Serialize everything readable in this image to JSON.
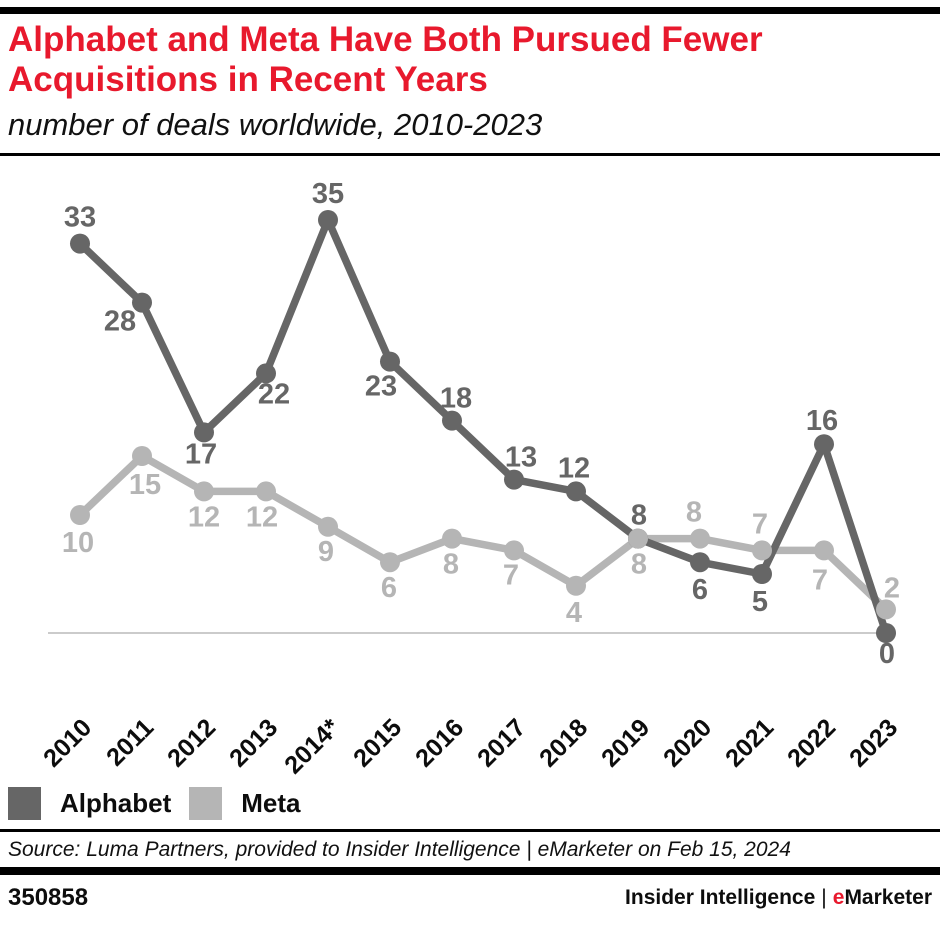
{
  "header": {
    "title_line1": "Alphabet and Meta Have Both Pursued Fewer",
    "title_line2": "Acquisitions in Recent Years",
    "subtitle": "number of deals worldwide, 2010-2023",
    "title_color": "#e8192d"
  },
  "chart_data": {
    "type": "line",
    "title": "Alphabet and Meta Have Both Pursued Fewer Acquisitions in Recent Years",
    "subtitle": "number of deals worldwide, 2010-2023",
    "xlabel": "",
    "ylabel": "",
    "categories": [
      "2010",
      "2011",
      "2012",
      "2013",
      "2014*",
      "2015",
      "2016",
      "2017",
      "2018",
      "2019",
      "2020",
      "2021",
      "2022",
      "2023"
    ],
    "series": [
      {
        "name": "Alphabet",
        "color": "#666666",
        "values": [
          33,
          28,
          17,
          22,
          35,
          23,
          18,
          13,
          12,
          8,
          6,
          5,
          16,
          0
        ],
        "label_offsets": [
          [
            0,
            -17
          ],
          [
            -22,
            28
          ],
          [
            -3,
            31
          ],
          [
            8,
            30
          ],
          [
            0,
            -17
          ],
          [
            -9,
            34
          ],
          [
            4,
            -13
          ],
          [
            7,
            -13
          ],
          [
            -2,
            -14
          ],
          [
            1,
            -14
          ],
          [
            0,
            37
          ],
          [
            -2,
            37
          ],
          [
            -2,
            -14
          ],
          [
            1,
            30
          ]
        ]
      },
      {
        "name": "Meta",
        "color": "#b5b5b5",
        "values": [
          10,
          15,
          12,
          12,
          9,
          6,
          8,
          7,
          4,
          8,
          8,
          7,
          7,
          2
        ],
        "label_offsets": [
          [
            -2,
            37
          ],
          [
            3,
            38
          ],
          [
            0,
            35
          ],
          [
            -4,
            35
          ],
          [
            -2,
            34
          ],
          [
            -1,
            35
          ],
          [
            -1,
            35
          ],
          [
            -3,
            34
          ],
          [
            -2,
            36
          ],
          [
            1,
            35
          ],
          [
            -6,
            -17
          ],
          [
            -2,
            -17
          ],
          [
            -4,
            39
          ],
          [
            6,
            -12
          ]
        ]
      }
    ],
    "ylim": [
      0,
      35
    ],
    "grid": false,
    "baseline_color": "#cbcbcb",
    "x_label_rotation": -45,
    "legend_position": "bottom-left"
  },
  "legend": {
    "items": [
      {
        "label": "Alphabet",
        "color": "#666666"
      },
      {
        "label": "Meta",
        "color": "#b5b5b5"
      }
    ]
  },
  "source_line": "Source: Luma Partners, provided to Insider Intelligence | eMarketer on Feb 15, 2024",
  "footer": {
    "chart_id": "350858",
    "brand_name": "Insider Intelligence",
    "brand_divider": "|",
    "emarketer_e": "e",
    "emarketer_rest": "Marketer",
    "accent_color": "#e8192d"
  }
}
